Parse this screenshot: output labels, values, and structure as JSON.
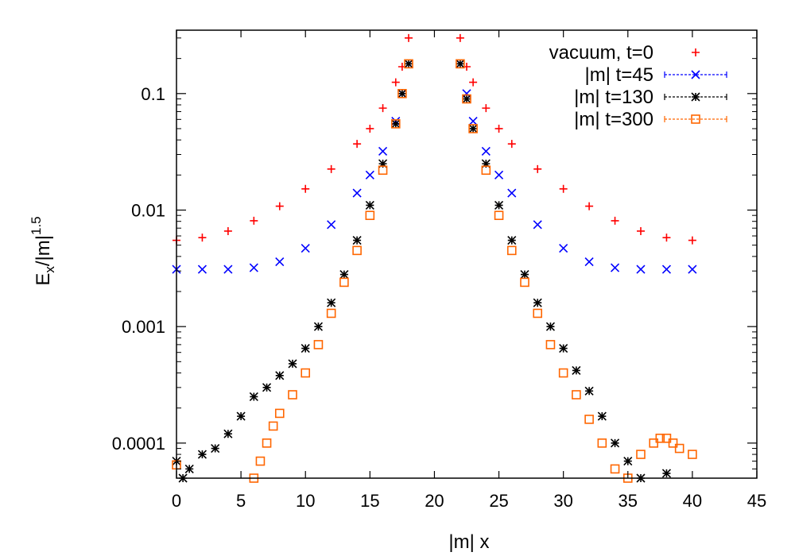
{
  "chart_data": {
    "type": "scatter",
    "title": "",
    "xlabel": "|m| x",
    "ylabel": {
      "base": "E",
      "sub": "x",
      "rest": "/|m|",
      "sup": "1.5"
    },
    "xlim": [
      0,
      45
    ],
    "ylim": [
      5e-05,
      0.35
    ],
    "yscale": "log",
    "grid": false,
    "legend_position": "top-right",
    "xticks": [
      {
        "value": 0,
        "label": "0"
      },
      {
        "value": 5,
        "label": "5"
      },
      {
        "value": 10,
        "label": "10"
      },
      {
        "value": 15,
        "label": "15"
      },
      {
        "value": 20,
        "label": "20"
      },
      {
        "value": 25,
        "label": "25"
      },
      {
        "value": 30,
        "label": "30"
      },
      {
        "value": 35,
        "label": "35"
      },
      {
        "value": 40,
        "label": "40"
      },
      {
        "value": 45,
        "label": "45"
      }
    ],
    "yticks": [
      {
        "value": 0.0001,
        "label": "0.0001"
      },
      {
        "value": 0.001,
        "label": "0.001"
      },
      {
        "value": 0.01,
        "label": "0.01"
      },
      {
        "value": 0.1,
        "label": "0.1"
      }
    ],
    "series": [
      {
        "name": "vacuum, t=0",
        "marker": "plus",
        "color": "#ff0000",
        "points": [
          [
            0,
            0.0055
          ],
          [
            2,
            0.0058
          ],
          [
            4,
            0.0066
          ],
          [
            6,
            0.0081
          ],
          [
            8,
            0.0108
          ],
          [
            10,
            0.0152
          ],
          [
            12,
            0.0225
          ],
          [
            14,
            0.037
          ],
          [
            15,
            0.05
          ],
          [
            16,
            0.075
          ],
          [
            17,
            0.125
          ],
          [
            17.5,
            0.17
          ],
          [
            18,
            0.3
          ],
          [
            22,
            0.3
          ],
          [
            22.5,
            0.17
          ],
          [
            23,
            0.125
          ],
          [
            24,
            0.075
          ],
          [
            25,
            0.05
          ],
          [
            26,
            0.037
          ],
          [
            28,
            0.0225
          ],
          [
            30,
            0.0152
          ],
          [
            32,
            0.0108
          ],
          [
            34,
            0.0081
          ],
          [
            36,
            0.0066
          ],
          [
            38,
            0.0058
          ],
          [
            40,
            0.0055
          ]
        ]
      },
      {
        "name": "|m| t=45",
        "marker": "x",
        "color": "#0000ff",
        "points": [
          [
            0,
            0.0031
          ],
          [
            2,
            0.0031
          ],
          [
            4,
            0.0031
          ],
          [
            6,
            0.0032
          ],
          [
            8,
            0.0036
          ],
          [
            10,
            0.0047
          ],
          [
            12,
            0.0075
          ],
          [
            14,
            0.014
          ],
          [
            15,
            0.02
          ],
          [
            16,
            0.032
          ],
          [
            17,
            0.058
          ],
          [
            17.5,
            0.1
          ],
          [
            18,
            0.18
          ],
          [
            22,
            0.18
          ],
          [
            22.5,
            0.1
          ],
          [
            23,
            0.058
          ],
          [
            24,
            0.032
          ],
          [
            25,
            0.02
          ],
          [
            26,
            0.014
          ],
          [
            28,
            0.0075
          ],
          [
            30,
            0.0047
          ],
          [
            32,
            0.0036
          ],
          [
            34,
            0.0032
          ],
          [
            36,
            0.0031
          ],
          [
            38,
            0.0031
          ],
          [
            40,
            0.0031
          ]
        ]
      },
      {
        "name": "|m| t=130",
        "marker": "star",
        "color": "#000000",
        "points": [
          [
            0,
            7e-05
          ],
          [
            0.5,
            5e-05
          ],
          [
            1,
            6e-05
          ],
          [
            2,
            8e-05
          ],
          [
            3,
            9e-05
          ],
          [
            4,
            0.00012
          ],
          [
            5,
            0.00017
          ],
          [
            6,
            0.00025
          ],
          [
            7,
            0.0003
          ],
          [
            8,
            0.00038
          ],
          [
            9,
            0.00048
          ],
          [
            10,
            0.00065
          ],
          [
            11,
            0.001
          ],
          [
            12,
            0.0016
          ],
          [
            13,
            0.0028
          ],
          [
            14,
            0.0055
          ],
          [
            15,
            0.011
          ],
          [
            16,
            0.025
          ],
          [
            17,
            0.055
          ],
          [
            17.5,
            0.1
          ],
          [
            18,
            0.18
          ],
          [
            22,
            0.18
          ],
          [
            22.5,
            0.09
          ],
          [
            23,
            0.05
          ],
          [
            24,
            0.025
          ],
          [
            25,
            0.011
          ],
          [
            26,
            0.0055
          ],
          [
            27,
            0.0028
          ],
          [
            28,
            0.0016
          ],
          [
            29,
            0.001
          ],
          [
            30,
            0.00065
          ],
          [
            31,
            0.00042
          ],
          [
            32,
            0.00028
          ],
          [
            33,
            0.00017
          ],
          [
            34,
            0.0001
          ],
          [
            35,
            7e-05
          ],
          [
            36,
            5e-05
          ],
          [
            38,
            5.5e-05
          ]
        ]
      },
      {
        "name": "|m| t=300",
        "marker": "square",
        "color": "#ff6600",
        "points": [
          [
            0,
            6.5e-05
          ],
          [
            6,
            5e-05
          ],
          [
            6.5,
            7e-05
          ],
          [
            7,
            0.0001
          ],
          [
            7.5,
            0.00014
          ],
          [
            8,
            0.00018
          ],
          [
            9,
            0.00026
          ],
          [
            10,
            0.0004
          ],
          [
            11,
            0.0007
          ],
          [
            12,
            0.0013
          ],
          [
            13,
            0.0024
          ],
          [
            14,
            0.0045
          ],
          [
            15,
            0.009
          ],
          [
            16,
            0.022
          ],
          [
            17,
            0.055
          ],
          [
            17.5,
            0.1
          ],
          [
            18,
            0.18
          ],
          [
            22,
            0.18
          ],
          [
            22.5,
            0.09
          ],
          [
            23,
            0.05
          ],
          [
            24,
            0.022
          ],
          [
            25,
            0.009
          ],
          [
            26,
            0.0045
          ],
          [
            27,
            0.0024
          ],
          [
            28,
            0.0013
          ],
          [
            29,
            0.0007
          ],
          [
            30,
            0.0004
          ],
          [
            31,
            0.00026
          ],
          [
            32,
            0.00016
          ],
          [
            33,
            0.0001
          ],
          [
            34,
            6e-05
          ],
          [
            35,
            5e-05
          ],
          [
            36,
            8e-05
          ],
          [
            37,
            0.0001
          ],
          [
            37.5,
            0.00011
          ],
          [
            38,
            0.00011
          ],
          [
            38.5,
            0.0001
          ],
          [
            39,
            9e-05
          ],
          [
            40,
            8e-05
          ]
        ]
      }
    ]
  }
}
